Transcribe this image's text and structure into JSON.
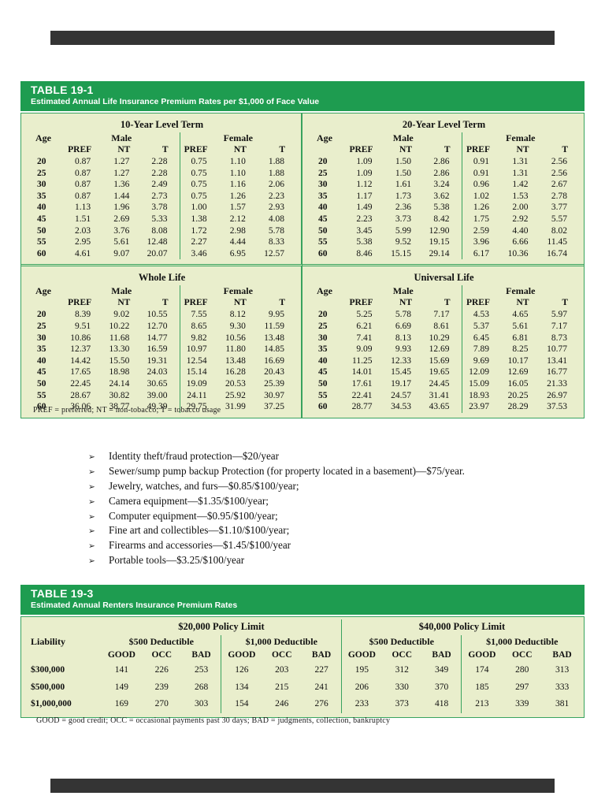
{
  "page_strips": {
    "color": "#343434"
  },
  "life_table": {
    "title": "TABLE 19-1",
    "subtitle": "Estimated Annual Life Insurance Premium Rates per $1,000 of Face Value",
    "age_label": "Age",
    "male_label": "Male",
    "female_label": "Female",
    "col_headers": [
      "PREF",
      "NT",
      "T"
    ],
    "sections": [
      {
        "name": "10-Year Level Term",
        "rows": [
          [
            "20",
            "0.87",
            "1.27",
            "2.28",
            "0.75",
            "1.10",
            "1.88"
          ],
          [
            "25",
            "0.87",
            "1.27",
            "2.28",
            "0.75",
            "1.10",
            "1.88"
          ],
          [
            "30",
            "0.87",
            "1.36",
            "2.49",
            "0.75",
            "1.16",
            "2.06"
          ],
          [
            "35",
            "0.87",
            "1.44",
            "2.73",
            "0.75",
            "1.26",
            "2.23"
          ],
          [
            "40",
            "1.13",
            "1.96",
            "3.78",
            "1.00",
            "1.57",
            "2.93"
          ],
          [
            "45",
            "1.51",
            "2.69",
            "5.33",
            "1.38",
            "2.12",
            "4.08"
          ],
          [
            "50",
            "2.03",
            "3.76",
            "8.08",
            "1.72",
            "2.98",
            "5.78"
          ],
          [
            "55",
            "2.95",
            "5.61",
            "12.48",
            "2.27",
            "4.44",
            "8.33"
          ],
          [
            "60",
            "4.61",
            "9.07",
            "20.07",
            "3.46",
            "6.95",
            "12.57"
          ]
        ]
      },
      {
        "name": "20-Year Level Term",
        "rows": [
          [
            "20",
            "1.09",
            "1.50",
            "2.86",
            "0.91",
            "1.31",
            "2.56"
          ],
          [
            "25",
            "1.09",
            "1.50",
            "2.86",
            "0.91",
            "1.31",
            "2.56"
          ],
          [
            "30",
            "1.12",
            "1.61",
            "3.24",
            "0.96",
            "1.42",
            "2.67"
          ],
          [
            "35",
            "1.17",
            "1.73",
            "3.62",
            "1.02",
            "1.53",
            "2.78"
          ],
          [
            "40",
            "1.49",
            "2.36",
            "5.38",
            "1.26",
            "2.00",
            "3.77"
          ],
          [
            "45",
            "2.23",
            "3.73",
            "8.42",
            "1.75",
            "2.92",
            "5.57"
          ],
          [
            "50",
            "3.45",
            "5.99",
            "12.90",
            "2.59",
            "4.40",
            "8.02"
          ],
          [
            "55",
            "5.38",
            "9.52",
            "19.15",
            "3.96",
            "6.66",
            "11.45"
          ],
          [
            "60",
            "8.46",
            "15.15",
            "29.14",
            "6.17",
            "10.36",
            "16.74"
          ]
        ]
      },
      {
        "name": "Whole Life",
        "rows": [
          [
            "20",
            "8.39",
            "9.02",
            "10.55",
            "7.55",
            "8.12",
            "9.95"
          ],
          [
            "25",
            "9.51",
            "10.22",
            "12.70",
            "8.65",
            "9.30",
            "11.59"
          ],
          [
            "30",
            "10.86",
            "11.68",
            "14.77",
            "9.82",
            "10.56",
            "13.48"
          ],
          [
            "35",
            "12.37",
            "13.30",
            "16.59",
            "10.97",
            "11.80",
            "14.85"
          ],
          [
            "40",
            "14.42",
            "15.50",
            "19.31",
            "12.54",
            "13.48",
            "16.69"
          ],
          [
            "45",
            "17.65",
            "18.98",
            "24.03",
            "15.14",
            "16.28",
            "20.43"
          ],
          [
            "50",
            "22.45",
            "24.14",
            "30.65",
            "19.09",
            "20.53",
            "25.39"
          ],
          [
            "55",
            "28.67",
            "30.82",
            "39.00",
            "24.11",
            "25.92",
            "30.97"
          ],
          [
            "60",
            "36.06",
            "38.77",
            "49.39",
            "29.75",
            "31.99",
            "37.25"
          ]
        ]
      },
      {
        "name": "Universal Life",
        "rows": [
          [
            "20",
            "5.25",
            "5.78",
            "7.17",
            "4.53",
            "4.65",
            "5.97"
          ],
          [
            "25",
            "6.21",
            "6.69",
            "8.61",
            "5.37",
            "5.61",
            "7.17"
          ],
          [
            "30",
            "7.41",
            "8.13",
            "10.29",
            "6.45",
            "6.81",
            "8.73"
          ],
          [
            "35",
            "9.09",
            "9.93",
            "12.69",
            "7.89",
            "8.25",
            "10.77"
          ],
          [
            "40",
            "11.25",
            "12.33",
            "15.69",
            "9.69",
            "10.17",
            "13.41"
          ],
          [
            "45",
            "14.01",
            "15.45",
            "19.65",
            "12.09",
            "12.69",
            "16.77"
          ],
          [
            "50",
            "17.61",
            "19.17",
            "24.45",
            "15.09",
            "16.05",
            "21.33"
          ],
          [
            "55",
            "22.41",
            "24.57",
            "31.41",
            "18.93",
            "20.25",
            "26.97"
          ],
          [
            "60",
            "28.77",
            "34.53",
            "43.65",
            "23.97",
            "28.29",
            "37.53"
          ]
        ]
      }
    ],
    "footnote": "PREF = preferred; NT = non-tobacco; T = tobacco usage"
  },
  "rider_bullets": {
    "marker": "➢",
    "items": [
      "Identity theft/fraud protection—$20/year",
      "Sewer/sump pump backup Protection (for property located in a basement)—$75/year.",
      "Jewelry, watches, and furs—$0.85/$100/year;",
      "Camera equipment—$1.35/$100/year;",
      "Computer equipment—$0.95/$100/year;",
      "Fine art and collectibles—$1.10/$100/year;",
      "Firearms and accessories—$1.45/$100/year",
      "Portable tools—$3.25/$100/year"
    ]
  },
  "renters_table": {
    "title": "TABLE 19-3",
    "subtitle": "Estimated Annual Renters Insurance Premium Rates",
    "liability_label": "Liability",
    "policy_limit_headers": [
      "$20,000 Policy Limit",
      "$40,000 Policy Limit"
    ],
    "deductible_headers": [
      "$500 Deductible",
      "$1,000 Deductible"
    ],
    "credit_headers": [
      "GOOD",
      "OCC",
      "BAD"
    ],
    "rows": [
      {
        "liability": "$300,000",
        "values": [
          "141",
          "226",
          "253",
          "126",
          "203",
          "227",
          "195",
          "312",
          "349",
          "174",
          "280",
          "313"
        ]
      },
      {
        "liability": "$500,000",
        "values": [
          "149",
          "239",
          "268",
          "134",
          "215",
          "241",
          "206",
          "330",
          "370",
          "185",
          "297",
          "333"
        ]
      },
      {
        "liability": "$1,000,000",
        "values": [
          "169",
          "270",
          "303",
          "154",
          "246",
          "276",
          "233",
          "373",
          "418",
          "213",
          "339",
          "381"
        ]
      }
    ],
    "footnote": "GOOD = good credit; OCC = occasional payments past 30 days; BAD = judgments, collection, bankruptcy"
  },
  "colors": {
    "header_green": "#1E9C50",
    "body_green": "#E9EECC",
    "line_green": "#38A35E",
    "strip_gray": "#343434"
  }
}
